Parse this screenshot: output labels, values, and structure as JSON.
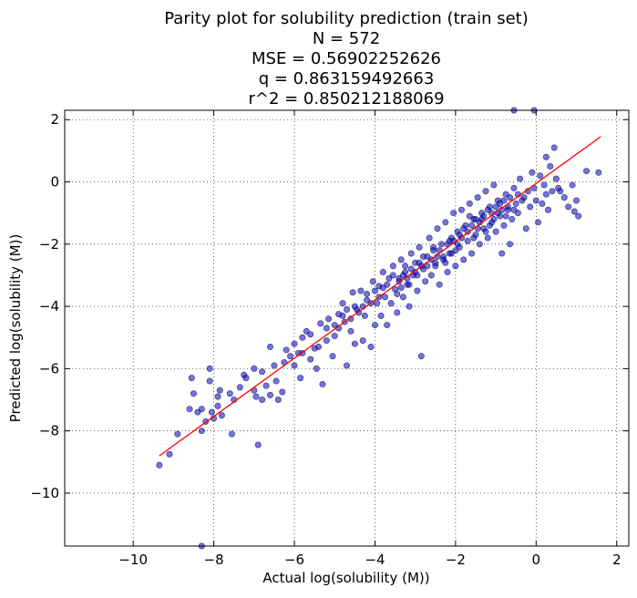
{
  "chart_data": {
    "type": "scatter",
    "title_lines": [
      "Parity plot for solubility prediction (train set)",
      "N = 572",
      "MSE = 0.56902252626",
      "q = 0.863159492663",
      "r^2 = 0.850212188069"
    ],
    "xlabel": "Actual log(solubility (M))",
    "ylabel": "Predicted log(solubility (M))",
    "xlim": [
      -11.7,
      2.3
    ],
    "ylim": [
      -11.7,
      2.3
    ],
    "xticks": [
      -10,
      -8,
      -6,
      -4,
      -2,
      0,
      2
    ],
    "yticks": [
      -10,
      -8,
      -6,
      -4,
      -2,
      0,
      2
    ],
    "tick_labels": [
      "−10",
      "−8",
      "−6",
      "−4",
      "−2",
      "0",
      "2"
    ],
    "grid": true,
    "colors": {
      "points": "#0000cc",
      "fit_line": "#ff0000"
    },
    "fit_line": {
      "x": [
        -9.35,
        1.6
      ],
      "y": [
        -8.8,
        1.45
      ]
    },
    "points": [
      [
        -9.35,
        -9.1
      ],
      [
        -9.1,
        -8.75
      ],
      [
        -8.9,
        -8.1
      ],
      [
        -8.6,
        -7.3
      ],
      [
        -8.5,
        -6.8
      ],
      [
        -8.55,
        -6.3
      ],
      [
        -8.3,
        -8.0
      ],
      [
        -8.4,
        -7.4
      ],
      [
        -8.3,
        -7.3
      ],
      [
        -8.05,
        -7.4
      ],
      [
        -8.1,
        -6.4
      ],
      [
        -8.1,
        -6.0
      ],
      [
        -8.0,
        -7.6
      ],
      [
        -7.9,
        -7.2
      ],
      [
        -7.85,
        -6.7
      ],
      [
        -7.8,
        -7.5
      ],
      [
        -7.55,
        -8.1
      ],
      [
        -7.6,
        -6.8
      ],
      [
        -7.35,
        -6.6
      ],
      [
        -7.25,
        -6.2
      ],
      [
        -7.0,
        -6.0
      ],
      [
        -6.95,
        -6.9
      ],
      [
        -6.9,
        -8.45
      ],
      [
        -6.8,
        -7.0
      ],
      [
        -6.7,
        -6.55
      ],
      [
        -6.6,
        -6.85
      ],
      [
        -6.5,
        -5.9
      ],
      [
        -6.45,
        -6.4
      ],
      [
        -6.4,
        -7.0
      ],
      [
        -6.3,
        -6.75
      ],
      [
        -6.25,
        -5.8
      ],
      [
        -6.1,
        -5.6
      ],
      [
        -6.0,
        -5.2
      ],
      [
        -5.85,
        -6.3
      ],
      [
        -5.8,
        -5.5
      ],
      [
        -5.7,
        -4.8
      ],
      [
        -5.6,
        -5.7
      ],
      [
        -5.5,
        -5.35
      ],
      [
        -5.45,
        -6.0
      ],
      [
        -5.35,
        -4.55
      ],
      [
        -5.3,
        -6.5
      ],
      [
        -5.2,
        -5.1
      ],
      [
        -5.15,
        -4.4
      ],
      [
        -5.05,
        -5.6
      ],
      [
        -5.0,
        -4.95
      ],
      [
        -4.9,
        -4.25
      ],
      [
        -4.8,
        -3.9
      ],
      [
        -4.75,
        -4.5
      ],
      [
        -4.7,
        -5.9
      ],
      [
        -4.6,
        -4.8
      ],
      [
        -4.55,
        -3.55
      ],
      [
        -4.5,
        -5.2
      ],
      [
        -4.45,
        -4.1
      ],
      [
        -4.35,
        -3.5
      ],
      [
        -4.3,
        -5.1
      ],
      [
        -4.25,
        -4.3
      ],
      [
        -4.2,
        -3.8
      ],
      [
        -4.1,
        -5.3
      ],
      [
        -4.05,
        -3.2
      ],
      [
        -4.0,
        -4.6
      ],
      [
        -3.95,
        -3.9
      ],
      [
        -3.9,
        -3.35
      ],
      [
        -3.85,
        -4.3
      ],
      [
        -3.8,
        -2.9
      ],
      [
        -3.75,
        -3.7
      ],
      [
        -3.7,
        -4.6
      ],
      [
        -3.65,
        -3.1
      ],
      [
        -3.6,
        -3.9
      ],
      [
        -3.55,
        -2.7
      ],
      [
        -3.5,
        -3.45
      ],
      [
        -3.45,
        -4.2
      ],
      [
        -3.4,
        -3.1
      ],
      [
        -3.35,
        -2.5
      ],
      [
        -3.3,
        -3.7
      ],
      [
        -3.25,
        -2.9
      ],
      [
        -3.2,
        -3.3
      ],
      [
        -3.15,
        -4.0
      ],
      [
        -3.1,
        -2.3
      ],
      [
        -3.05,
        -3.0
      ],
      [
        -3.0,
        -2.6
      ],
      [
        -2.95,
        -3.5
      ],
      [
        -2.9,
        -2.1
      ],
      [
        -2.85,
        -5.6
      ],
      [
        -2.8,
        -2.8
      ],
      [
        -2.75,
        -3.2
      ],
      [
        -2.7,
        -2.4
      ],
      [
        -2.65,
        -1.8
      ],
      [
        -2.6,
        -3.0
      ],
      [
        -2.55,
        -2.2
      ],
      [
        -2.5,
        -2.7
      ],
      [
        -2.45,
        -1.5
      ],
      [
        -2.4,
        -3.3
      ],
      [
        -2.35,
        -2.0
      ],
      [
        -2.3,
        -2.5
      ],
      [
        -2.25,
        -1.3
      ],
      [
        -2.2,
        -2.9
      ],
      [
        -2.15,
        -1.9
      ],
      [
        -2.1,
        -2.3
      ],
      [
        -2.05,
        -1.0
      ],
      [
        -2.0,
        -2.7
      ],
      [
        -1.95,
        -1.6
      ],
      [
        -1.9,
        -2.1
      ],
      [
        -1.85,
        -0.9
      ],
      [
        -1.8,
        -2.5
      ],
      [
        -1.75,
        -1.4
      ],
      [
        -1.7,
        -1.9
      ],
      [
        -1.65,
        -0.7
      ],
      [
        -1.6,
        -2.3
      ],
      [
        -1.55,
        -1.2
      ],
      [
        -1.5,
        -1.7
      ],
      [
        -1.45,
        -0.5
      ],
      [
        -1.4,
        -2.0
      ],
      [
        -1.35,
        -1.0
      ],
      [
        -1.3,
        -1.5
      ],
      [
        -1.25,
        -0.3
      ],
      [
        -1.2,
        -1.8
      ],
      [
        -1.15,
        -0.8
      ],
      [
        -1.1,
        -1.3
      ],
      [
        -1.05,
        -0.1
      ],
      [
        -1.0,
        -1.6
      ],
      [
        -0.95,
        -0.6
      ],
      [
        -0.9,
        -1.1
      ],
      [
        -0.85,
        -2.3
      ],
      [
        -0.8,
        -1.4
      ],
      [
        -0.75,
        -0.4
      ],
      [
        -0.7,
        -0.9
      ],
      [
        -0.65,
        -2.0
      ],
      [
        -0.6,
        -1.2
      ],
      [
        -0.55,
        -0.2
      ],
      [
        -0.5,
        -0.7
      ],
      [
        -0.45,
        -1.0
      ],
      [
        -0.4,
        0.1
      ],
      [
        -0.3,
        -0.5
      ],
      [
        -0.25,
        -1.5
      ],
      [
        -0.2,
        -0.3
      ],
      [
        -0.15,
        -0.8
      ],
      [
        -0.1,
        0.3
      ],
      [
        -0.05,
        -0.2
      ],
      [
        0.0,
        -0.6
      ],
      [
        0.05,
        -1.3
      ],
      [
        0.1,
        0.2
      ],
      [
        0.2,
        -0.1
      ],
      [
        0.25,
        -0.4
      ],
      [
        0.35,
        0.5
      ],
      [
        0.45,
        1.1
      ],
      [
        0.55,
        -0.2
      ],
      [
        0.6,
        -0.3
      ],
      [
        0.7,
        -0.5
      ],
      [
        0.9,
        -0.1
      ],
      [
        0.95,
        -0.95
      ],
      [
        1.05,
        -1.1
      ],
      [
        1.25,
        0.35
      ],
      [
        1.55,
        0.3
      ],
      [
        -0.55,
        2.3
      ],
      [
        -0.05,
        2.3
      ],
      [
        -8.3,
        -11.7
      ],
      [
        -2.7,
        -2.7
      ],
      [
        -2.6,
        -2.5
      ],
      [
        -2.5,
        -2.6
      ],
      [
        -2.4,
        -2.2
      ],
      [
        -2.3,
        -2.4
      ],
      [
        -2.2,
        -2.0
      ],
      [
        -2.1,
        -1.8
      ],
      [
        -2.0,
        -2.2
      ],
      [
        -1.9,
        -1.7
      ],
      [
        -1.8,
        -1.5
      ],
      [
        -1.7,
        -1.6
      ],
      [
        -1.6,
        -1.4
      ],
      [
        -1.5,
        -1.2
      ],
      [
        -1.4,
        -1.3
      ],
      [
        -3.4,
        -3.2
      ],
      [
        -3.3,
        -3.0
      ],
      [
        -3.2,
        -3.1
      ],
      [
        -3.1,
        -2.8
      ],
      [
        -3.0,
        -2.9
      ],
      [
        -2.9,
        -2.6
      ],
      [
        -2.8,
        -2.4
      ],
      [
        -4.3,
        -4.0
      ],
      [
        -4.2,
        -3.6
      ],
      [
        -4.1,
        -3.9
      ],
      [
        -4.0,
        -3.5
      ],
      [
        -3.9,
        -3.7
      ],
      [
        -3.8,
        -3.4
      ],
      [
        -3.7,
        -3.3
      ],
      [
        -1.3,
        -1.1
      ],
      [
        -1.2,
        -0.9
      ],
      [
        -1.1,
        -1.0
      ],
      [
        -1.0,
        -0.8
      ],
      [
        -0.9,
        -0.7
      ],
      [
        -0.8,
        -0.6
      ],
      [
        -0.7,
        -0.8
      ],
      [
        -5.0,
        -4.6
      ],
      [
        -4.9,
        -4.7
      ],
      [
        -4.8,
        -4.3
      ],
      [
        -4.7,
        -4.1
      ],
      [
        -4.6,
        -4.4
      ],
      [
        -4.5,
        -4.0
      ],
      [
        -4.4,
        -4.2
      ],
      [
        -2.25,
        -2.6
      ],
      [
        -2.15,
        -2.3
      ],
      [
        -2.05,
        -1.9
      ],
      [
        -1.95,
        -2.0
      ],
      [
        -1.85,
        -1.8
      ],
      [
        -2.45,
        -2.4
      ],
      [
        -2.55,
        -2.1
      ],
      [
        -3.55,
        -3.0
      ],
      [
        -3.45,
        -3.6
      ],
      [
        -3.35,
        -3.4
      ],
      [
        -3.25,
        -2.7
      ],
      [
        -3.15,
        -3.3
      ],
      [
        -2.95,
        -3.0
      ],
      [
        -2.85,
        -2.7
      ],
      [
        -1.65,
        -1.1
      ],
      [
        -1.55,
        -1.8
      ],
      [
        -1.45,
        -1.5
      ],
      [
        -1.35,
        -1.2
      ],
      [
        -1.25,
        -1.6
      ],
      [
        -1.15,
        -1.4
      ],
      [
        -1.05,
        -1.2
      ],
      [
        -0.95,
        -1.0
      ],
      [
        -0.85,
        -0.9
      ],
      [
        -0.75,
        -1.1
      ],
      [
        -0.65,
        -0.5
      ],
      [
        -0.55,
        -0.9
      ],
      [
        -0.45,
        -0.4
      ],
      [
        -0.35,
        -0.6
      ],
      [
        -5.8,
        -5.0
      ],
      [
        -5.6,
        -4.9
      ],
      [
        -5.4,
        -5.3
      ],
      [
        -5.2,
        -4.7
      ],
      [
        -6.0,
        -5.9
      ],
      [
        -6.2,
        -5.4
      ],
      [
        -5.9,
        -5.5
      ],
      [
        -7.2,
        -6.3
      ],
      [
        -7.0,
        -6.7
      ],
      [
        -6.8,
        -6.1
      ],
      [
        -6.6,
        -5.3
      ],
      [
        -7.5,
        -7.0
      ],
      [
        -8.2,
        -7.7
      ],
      [
        -7.9,
        -6.9
      ],
      [
        0.3,
        -0.9
      ],
      [
        0.4,
        -0.3
      ],
      [
        0.5,
        0.1
      ],
      [
        0.15,
        -0.7
      ],
      [
        0.8,
        -0.8
      ],
      [
        1.0,
        -0.6
      ],
      [
        0.25,
        0.8
      ]
    ]
  }
}
